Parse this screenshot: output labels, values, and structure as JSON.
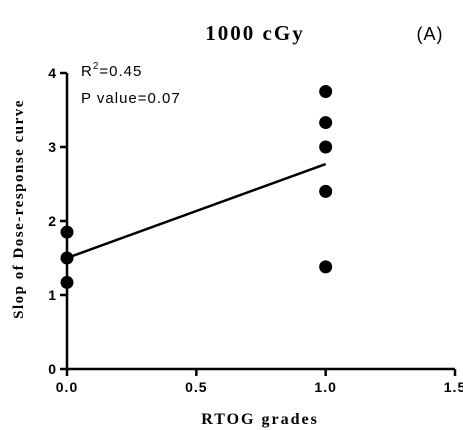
{
  "chart_data": {
    "type": "scatter",
    "title": "1000 cGy",
    "panel_label": "(A)",
    "xlabel": "RTOG grades",
    "ylabel": "Slop of Dose-response curve",
    "xlim": [
      0,
      1.5
    ],
    "ylim": [
      0,
      4
    ],
    "x_ticks": [
      0,
      0.5,
      1.0,
      1.5
    ],
    "x_tick_labels": [
      "0.0",
      "0.5",
      "1.0",
      "1.5"
    ],
    "y_ticks": [
      0,
      1,
      2,
      3,
      4
    ],
    "y_tick_labels": [
      "0",
      "1",
      "2",
      "3",
      "4"
    ],
    "points": [
      {
        "x": 0,
        "y": 1.85
      },
      {
        "x": 0,
        "y": 1.5
      },
      {
        "x": 0,
        "y": 1.17
      },
      {
        "x": 1,
        "y": 3.75
      },
      {
        "x": 1,
        "y": 3.33
      },
      {
        "x": 1,
        "y": 3.0
      },
      {
        "x": 1,
        "y": 2.4
      },
      {
        "x": 1,
        "y": 1.38
      }
    ],
    "fit_line": {
      "x": [
        0,
        1
      ],
      "y": [
        1.5,
        2.77
      ]
    },
    "annotations": {
      "r2_prefix": "R",
      "r2_sup": "2",
      "r2_value": "=0.45",
      "p_value": "P value=0.07"
    },
    "marker_color": "#000000",
    "grid": false
  }
}
